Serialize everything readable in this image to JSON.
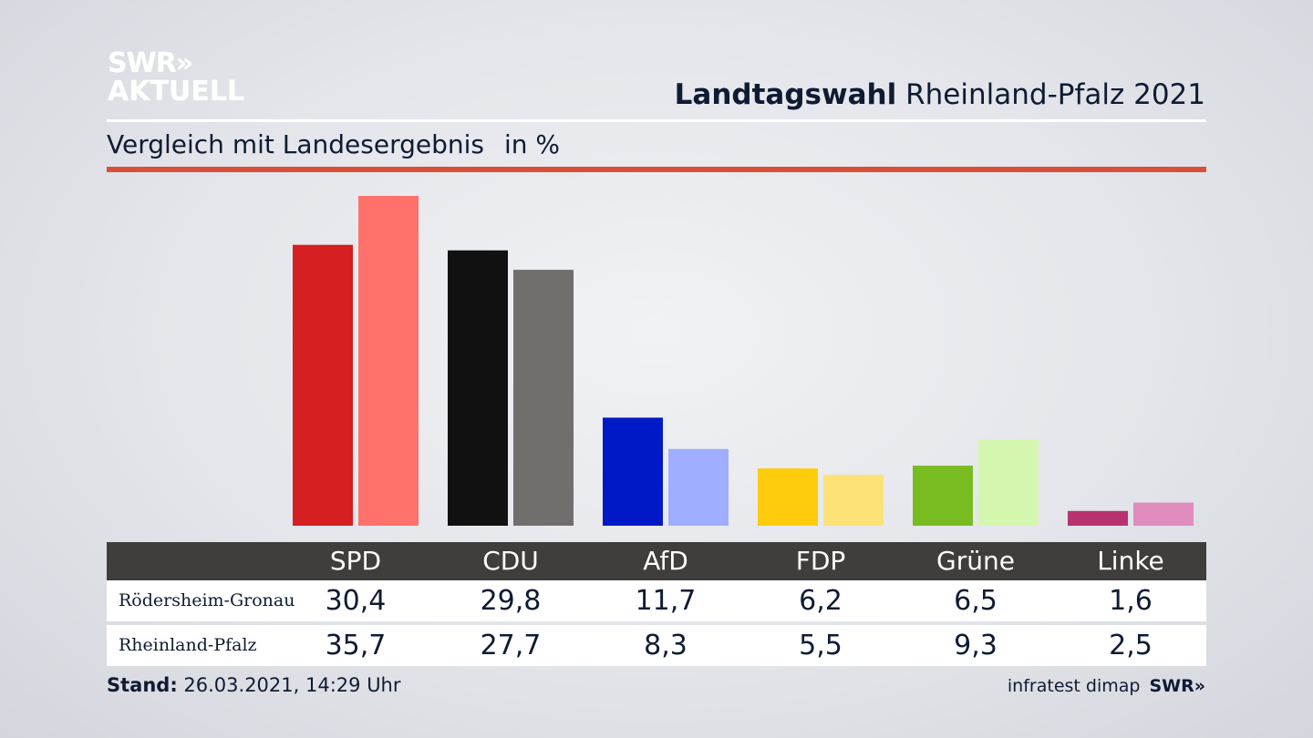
{
  "brand": {
    "logo_line1": "SWR»",
    "logo_line2": "AKTUELL"
  },
  "header": {
    "title_bold": "Landtagswahl",
    "title_rest": "Rheinland-Pfalz 2021"
  },
  "subtitle": {
    "text": "Vergleich mit Landesergebnis",
    "unit": "in %"
  },
  "colors": {
    "accent_red": "#d8503a",
    "table_header_bg": "#3f3e3d"
  },
  "chart_data": {
    "type": "bar",
    "categories": [
      "SPD",
      "CDU",
      "AfD",
      "FDP",
      "Grüne",
      "Linke"
    ],
    "series": [
      {
        "name": "Rödersheim-Gronau",
        "values": [
          30.4,
          29.8,
          11.7,
          6.2,
          6.5,
          1.6
        ],
        "colors": [
          "#d51f20",
          "#111111",
          "#0019c7",
          "#ffcc0d",
          "#78bc21",
          "#b83171"
        ]
      },
      {
        "name": "Rheinland-Pfalz",
        "values": [
          35.7,
          27.7,
          8.3,
          5.5,
          9.3,
          2.5
        ],
        "colors": [
          "#ff726b",
          "#706f6e",
          "#a0aeff",
          "#fde277",
          "#d5f6ae",
          "#e08cbd"
        ]
      }
    ],
    "value_labels": [
      [
        "30,4",
        "29,8",
        "11,7",
        "6,2",
        "6,5",
        "1,6"
      ],
      [
        "35,7",
        "27,7",
        "8,3",
        "5,5",
        "9,3",
        "2,5"
      ]
    ],
    "ylim": [
      0,
      35.7
    ],
    "grid": false,
    "xlabel": "",
    "ylabel": ""
  },
  "footer": {
    "stand_label": "Stand:",
    "stand_value": "26.03.2021, 14:29 Uhr",
    "source": "infratest dimap",
    "source_brand": "SWR»"
  }
}
